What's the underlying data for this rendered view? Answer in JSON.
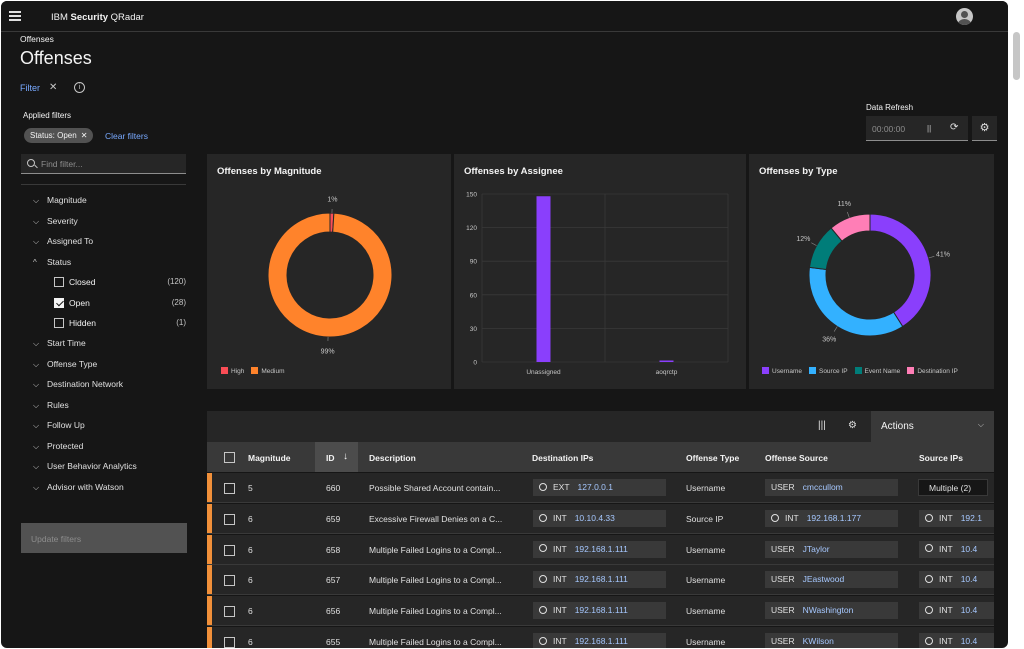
{
  "header": {
    "brand_prefix": "IBM ",
    "brand_bold": "Security",
    "brand_suffix": " QRadar"
  },
  "breadcrumb": "Offenses",
  "page_title": "Offenses",
  "filter": {
    "link_label": "Filter",
    "close_glyph": "✕",
    "info_glyph": "i",
    "applied_label": "Applied filters",
    "chip_label": "Status: Open",
    "chip_close": "✕",
    "clear_label": "Clear filters",
    "search_placeholder": "Find filter...",
    "items": [
      {
        "label": "Magnitude",
        "chevron": "⌵"
      },
      {
        "label": "Severity",
        "chevron": "⌵"
      },
      {
        "label": "Assigned To",
        "chevron": "⌵"
      },
      {
        "label": "Status",
        "chevron": "^"
      },
      {
        "label": "Start Time",
        "chevron": "⌵"
      },
      {
        "label": "Offense Type",
        "chevron": "⌵"
      },
      {
        "label": "Destination Network",
        "chevron": "⌵"
      },
      {
        "label": "Rules",
        "chevron": "⌵"
      },
      {
        "label": "Follow Up",
        "chevron": "⌵"
      },
      {
        "label": "Protected",
        "chevron": "⌵"
      },
      {
        "label": "User Behavior Analytics",
        "chevron": "⌵"
      },
      {
        "label": "Advisor with Watson",
        "chevron": "⌵"
      }
    ],
    "status_options": [
      {
        "label": "Closed",
        "count": "(120)",
        "checked": false
      },
      {
        "label": "Open",
        "count": "(28)",
        "checked": true
      },
      {
        "label": "Hidden",
        "count": "(1)",
        "checked": false
      }
    ],
    "update_label": "Update filters"
  },
  "refresh": {
    "label": "Data Refresh",
    "time": "00:00:00",
    "pause_glyph": "||",
    "reload_glyph": "⟳",
    "gear_glyph": "⚙"
  },
  "colors": {
    "high": "#fa4d56",
    "medium": "#ff832b",
    "assignee_bar": "#8a3ffc",
    "username": "#8a3ffc",
    "source_ip": "#33b1ff",
    "event_name": "#007d79",
    "destination_ip": "#ff7eb6",
    "magnitude_stripe": "#f1903a"
  },
  "chart_data": [
    {
      "type": "pie",
      "title": "Offenses by Magnitude",
      "labels": [
        "High",
        "Medium"
      ],
      "values": [
        1,
        99
      ],
      "value_labels": [
        "1%",
        "99%"
      ],
      "colors": [
        "#fa4d56",
        "#ff832b"
      ],
      "legend": "bottom-left"
    },
    {
      "type": "bar",
      "title": "Offenses by Assignee",
      "categories": [
        "Unassigned",
        "aoqrctp"
      ],
      "values": [
        148,
        1
      ],
      "ylim": [
        0,
        150
      ],
      "yticks": [
        "150",
        "120",
        "90",
        "60",
        "30",
        "0"
      ],
      "grid": true
    },
    {
      "type": "pie",
      "title": "Offenses by Type",
      "labels": [
        "Username",
        "Source IP",
        "Event Name",
        "Destination IP"
      ],
      "values": [
        41,
        36,
        12,
        11
      ],
      "value_labels": [
        "41%",
        "36%",
        "12%",
        "11%"
      ],
      "colors": [
        "#8a3ffc",
        "#33b1ff",
        "#007d79",
        "#ff7eb6"
      ],
      "legend": "bottom"
    }
  ],
  "toolbar": {
    "columns_glyph": "|||",
    "settings_glyph": "⚙",
    "actions_label": "Actions",
    "actions_chevron": "⌵"
  },
  "table": {
    "headers": {
      "magnitude": "Magnitude",
      "id": "ID",
      "id_sort": "↓",
      "description": "Description",
      "destination_ips": "Destination IPs",
      "offense_type": "Offense Type",
      "offense_source": "Offense Source",
      "source_ips": "Source IPs"
    },
    "rows": [
      {
        "magnitude": "5",
        "id": "660",
        "description": "Possible Shared Account contain...",
        "dest_tag": "EXT",
        "dest_ip": "127.0.0.1",
        "offense_type": "Username",
        "source_tag": "USER",
        "source_val": "cmccullom",
        "source_ips_kind": "multi",
        "source_ips": "Multiple (2)"
      },
      {
        "magnitude": "6",
        "id": "659",
        "description": "Excessive Firewall Denies on a C...",
        "dest_tag": "INT",
        "dest_ip": "10.10.4.33",
        "offense_type": "Source IP",
        "source_tag": "INT",
        "source_val": "192.168.1.177",
        "source_ips_kind": "ip",
        "source_ips": "192.1"
      },
      {
        "magnitude": "6",
        "id": "658",
        "description": "Multiple Failed Logins to a Compl...",
        "dest_tag": "INT",
        "dest_ip": "192.168.1.111",
        "offense_type": "Username",
        "source_tag": "USER",
        "source_val": "JTaylor",
        "source_ips_kind": "ip",
        "source_ips": "10.4"
      },
      {
        "magnitude": "6",
        "id": "657",
        "description": "Multiple Failed Logins to a Compl...",
        "dest_tag": "INT",
        "dest_ip": "192.168.1.111",
        "offense_type": "Username",
        "source_tag": "USER",
        "source_val": "JEastwood",
        "source_ips_kind": "ip",
        "source_ips": "10.4"
      },
      {
        "magnitude": "6",
        "id": "656",
        "description": "Multiple Failed Logins to a Compl...",
        "dest_tag": "INT",
        "dest_ip": "192.168.1.111",
        "offense_type": "Username",
        "source_tag": "USER",
        "source_val": "NWashington",
        "source_ips_kind": "ip",
        "source_ips": "10.4"
      },
      {
        "magnitude": "6",
        "id": "655",
        "description": "Multiple Failed Logins to a Compl...",
        "dest_tag": "INT",
        "dest_ip": "192.168.1.111",
        "offense_type": "Username",
        "source_tag": "USER",
        "source_val": "KWilson",
        "source_ips_kind": "ip",
        "source_ips": "10.4"
      }
    ]
  }
}
